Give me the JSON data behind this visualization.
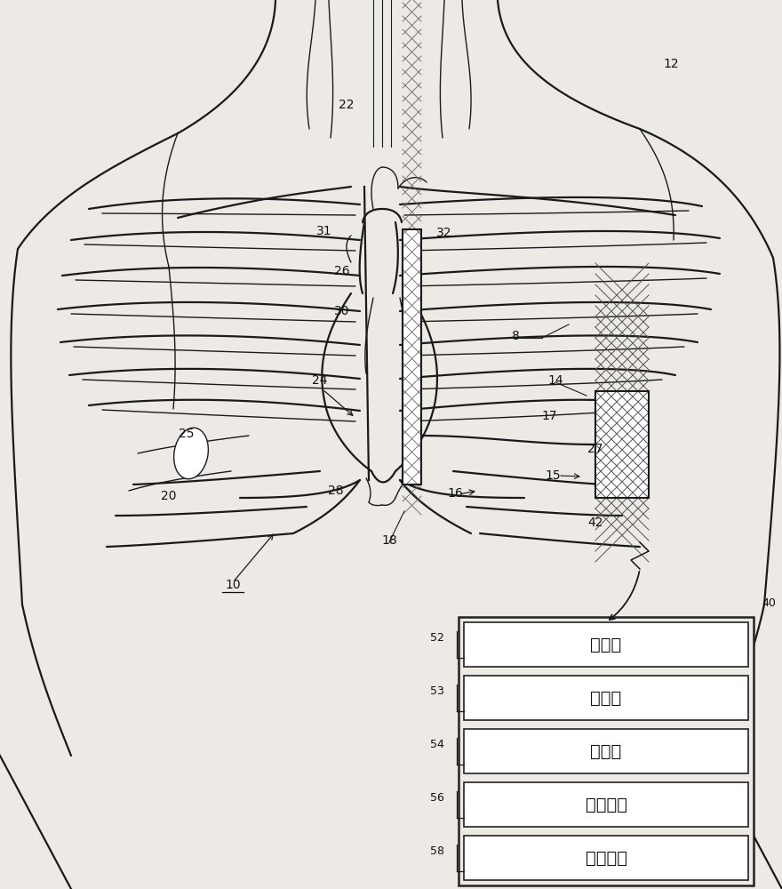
{
  "bg_color": "#ede9e4",
  "line_color": "#1a1a1a",
  "box_bg": "#ffffff",
  "box_border": "#222222",
  "text_color": "#111111",
  "boxes": [
    {
      "label": "处理器",
      "num": "52"
    },
    {
      "label": "存储器",
      "num": "53"
    },
    {
      "label": "显示器",
      "num": "54"
    },
    {
      "label": "用户界面",
      "num": "56"
    },
    {
      "label": "遥测单元",
      "num": "58"
    }
  ],
  "figsize": [
    8.8,
    10.0
  ],
  "dpi": 100
}
